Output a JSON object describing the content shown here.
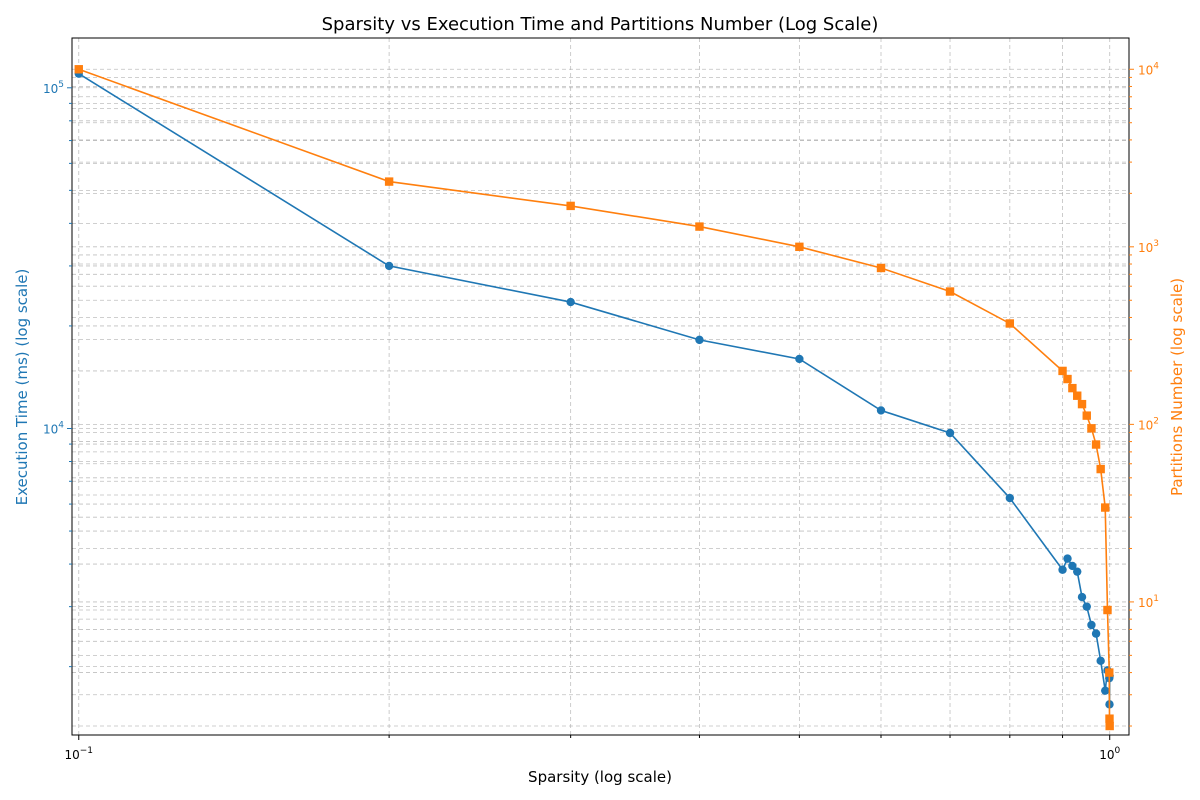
{
  "chart_data": {
    "type": "line",
    "title": "Sparsity vs Execution Time and Partitions Number (Log Scale)",
    "xlabel": "Sparsity (log scale)",
    "ylabel_left": "Execution Time (ms) (log scale)",
    "ylabel_right": "Partitions Number (log scale)",
    "x_scale": "log",
    "y_scale_left": "log",
    "y_scale_right": "log",
    "xlim": [
      0.0985,
      1.044
    ],
    "ylim_left": [
      1260,
      140000
    ],
    "ylim_right": [
      1.78,
      15000
    ],
    "grid": true,
    "colors": {
      "left": "#1f77b4",
      "right": "#ff7f0e"
    },
    "x_ticks": [
      {
        "value": 0.1,
        "base": "10",
        "exp": "−1"
      },
      {
        "value": 1.0,
        "base": "10",
        "exp": "0"
      }
    ],
    "left_ticks": [
      {
        "value": 10000,
        "base": "10",
        "exp": "4"
      },
      {
        "value": 100000,
        "base": "10",
        "exp": "5"
      }
    ],
    "right_ticks": [
      {
        "value": 10,
        "base": "10",
        "exp": "1"
      },
      {
        "value": 100,
        "base": "10",
        "exp": "2"
      },
      {
        "value": 1000,
        "base": "10",
        "exp": "3"
      },
      {
        "value": 10000,
        "base": "10",
        "exp": "4"
      }
    ],
    "series": [
      {
        "axis": "left",
        "marker": "circle",
        "x": [
          0.1,
          0.2,
          0.3,
          0.4,
          0.5,
          0.6,
          0.7,
          0.8,
          0.9,
          0.91,
          0.92,
          0.93,
          0.94,
          0.95,
          0.96,
          0.97,
          0.98,
          0.99,
          0.995,
          0.999,
          0.9995,
          0.9999
        ],
        "values": [
          110000,
          30000,
          23500,
          18200,
          16000,
          11300,
          9700,
          6250,
          3850,
          4150,
          3950,
          3800,
          3200,
          3000,
          2650,
          2500,
          2080,
          1700,
          1950,
          1850,
          1550,
          1880
        ]
      },
      {
        "axis": "right",
        "marker": "square",
        "x": [
          0.1,
          0.2,
          0.3,
          0.4,
          0.5,
          0.6,
          0.7,
          0.8,
          0.9,
          0.91,
          0.92,
          0.93,
          0.94,
          0.95,
          0.96,
          0.97,
          0.98,
          0.99,
          0.995,
          0.999,
          0.9995,
          0.9999
        ],
        "values": [
          10000,
          2330,
          1700,
          1300,
          1000,
          760,
          560,
          370,
          200,
          180,
          160,
          145,
          130,
          112,
          95,
          77,
          56,
          34,
          9,
          4,
          2.2,
          2
        ]
      }
    ]
  }
}
